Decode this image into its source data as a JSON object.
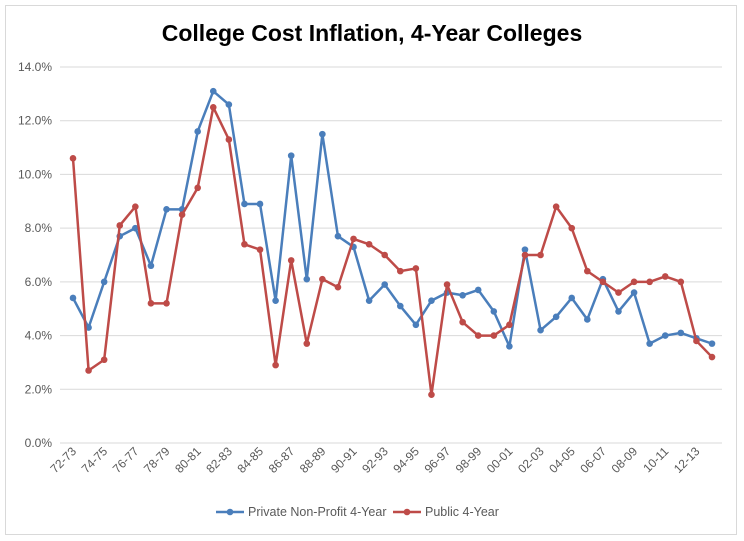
{
  "chart_data": {
    "type": "line",
    "title": "College Cost Inflation, 4-Year Colleges",
    "xlabel": "",
    "ylabel": "",
    "categories": [
      "72-73",
      "73-74",
      "74-75",
      "75-76",
      "76-77",
      "77-78",
      "78-79",
      "79-80",
      "80-81",
      "81-82",
      "82-83",
      "83-84",
      "84-85",
      "85-86",
      "86-87",
      "87-88",
      "88-89",
      "89-90",
      "90-91",
      "91-92",
      "92-93",
      "93-94",
      "94-95",
      "95-96",
      "96-97",
      "97-98",
      "98-99",
      "99-00",
      "00-01",
      "01-02",
      "02-03",
      "03-04",
      "04-05",
      "05-06",
      "06-07",
      "07-08",
      "08-09",
      "09-10",
      "10-11",
      "11-12",
      "12-13",
      "13-14"
    ],
    "x_tick_labels": [
      "72-73",
      "74-75",
      "76-77",
      "78-79",
      "80-81",
      "82-83",
      "84-85",
      "86-87",
      "88-89",
      "90-91",
      "92-93",
      "94-95",
      "96-97",
      "98-99",
      "00-01",
      "02-03",
      "04-05",
      "06-07",
      "08-09",
      "10-11",
      "12-13"
    ],
    "ylim": [
      0,
      14
    ],
    "y_ticks": [
      "0.0%",
      "2.0%",
      "4.0%",
      "6.0%",
      "8.0%",
      "10.0%",
      "12.0%",
      "14.0%"
    ],
    "grid": true,
    "legend_position": "bottom",
    "series": [
      {
        "name": "Private Non-Profit 4-Year",
        "color": "#4a7ebb",
        "values": [
          5.4,
          4.3,
          6.0,
          7.7,
          8.0,
          6.6,
          8.7,
          8.7,
          11.6,
          13.1,
          12.6,
          8.9,
          8.9,
          5.3,
          10.7,
          6.1,
          11.5,
          7.7,
          7.3,
          5.3,
          5.9,
          5.1,
          4.4,
          5.3,
          5.6,
          5.5,
          5.7,
          4.9,
          3.6,
          7.2,
          4.2,
          4.7,
          5.4,
          4.6,
          6.1,
          4.9,
          5.6,
          3.7,
          4.0,
          4.1,
          3.9,
          3.7
        ]
      },
      {
        "name": "Public 4-Year",
        "color": "#be4b48",
        "values": [
          10.6,
          2.7,
          3.1,
          8.1,
          8.8,
          5.2,
          5.2,
          8.5,
          9.5,
          12.5,
          11.3,
          7.4,
          7.2,
          2.9,
          6.8,
          3.7,
          6.1,
          5.8,
          7.6,
          7.4,
          7.0,
          6.4,
          6.5,
          1.8,
          5.9,
          4.5,
          4.0,
          4.0,
          4.4,
          7.0,
          7.0,
          8.8,
          8.0,
          6.4,
          6.0,
          5.6,
          6.0,
          6.0,
          6.2,
          6.0,
          3.8,
          3.2
        ]
      }
    ]
  }
}
